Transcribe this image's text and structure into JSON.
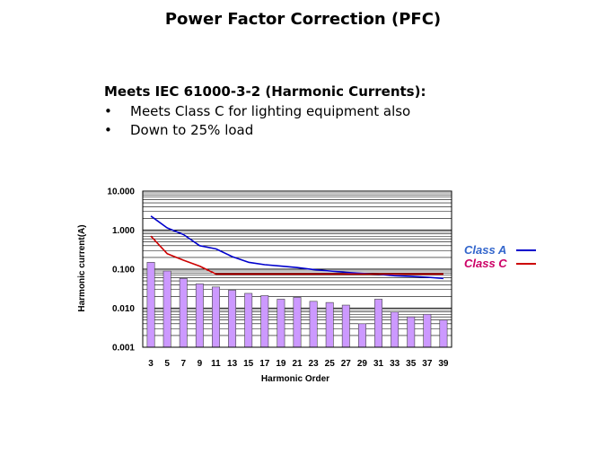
{
  "slide": {
    "title": "Power Factor Correction (PFC)",
    "heading": "Meets IEC 61000-3-2 (Harmonic Currents):",
    "bullets": [
      {
        "marker": "•",
        "text": "Meets Class C for lighting equipment also"
      },
      {
        "marker": "•",
        "text": "Down to 25% load"
      }
    ]
  },
  "chart_data": {
    "type": "bar",
    "xlabel": "Harmonic Order",
    "ylabel": "Harmonic current(A)",
    "yscale": "log",
    "ylim": [
      0.001,
      10
    ],
    "yticks": [
      {
        "value": 10,
        "label": "10.000"
      },
      {
        "value": 1,
        "label": "1.000"
      },
      {
        "value": 0.1,
        "label": "0.100"
      },
      {
        "value": 0.01,
        "label": "0.010"
      },
      {
        "value": 0.001,
        "label": "0.001"
      }
    ],
    "grid": true,
    "legend_position": "right",
    "categories": [
      "3",
      "5",
      "7",
      "9",
      "11",
      "13",
      "15",
      "17",
      "19",
      "21",
      "23",
      "25",
      "27",
      "29",
      "31",
      "33",
      "35",
      "37",
      "39"
    ],
    "bars": {
      "color": "#cc99ff",
      "values": [
        0.15,
        0.09,
        0.058,
        0.042,
        0.035,
        0.029,
        0.024,
        0.021,
        0.017,
        0.019,
        0.015,
        0.014,
        0.012,
        0.004,
        0.017,
        0.008,
        0.006,
        0.007,
        0.005
      ]
    },
    "series": [
      {
        "name": "Class A",
        "color": "#0000cc",
        "text_color": "#3366cc",
        "x": [
          3,
          5,
          7,
          9,
          11,
          13,
          15,
          17,
          19,
          21,
          23,
          25,
          27,
          29,
          31,
          33,
          35,
          37,
          39
        ],
        "values": [
          2.3,
          1.14,
          0.77,
          0.4,
          0.33,
          0.21,
          0.15,
          0.13,
          0.12,
          0.11,
          0.098,
          0.09,
          0.083,
          0.078,
          0.074,
          0.068,
          0.065,
          0.062,
          0.058
        ]
      },
      {
        "name": "Class C",
        "color": "#cc0000",
        "text_color": "#cc0066",
        "x": [
          3,
          5,
          7,
          9,
          11,
          13,
          15,
          17,
          19,
          21,
          23,
          25,
          27,
          29,
          31,
          33,
          35,
          37,
          39
        ],
        "values": [
          0.7,
          0.25,
          0.17,
          0.12,
          0.075,
          0.075,
          0.075,
          0.075,
          0.075,
          0.075,
          0.075,
          0.075,
          0.075,
          0.075,
          0.075,
          0.075,
          0.075,
          0.075,
          0.075
        ]
      }
    ]
  }
}
